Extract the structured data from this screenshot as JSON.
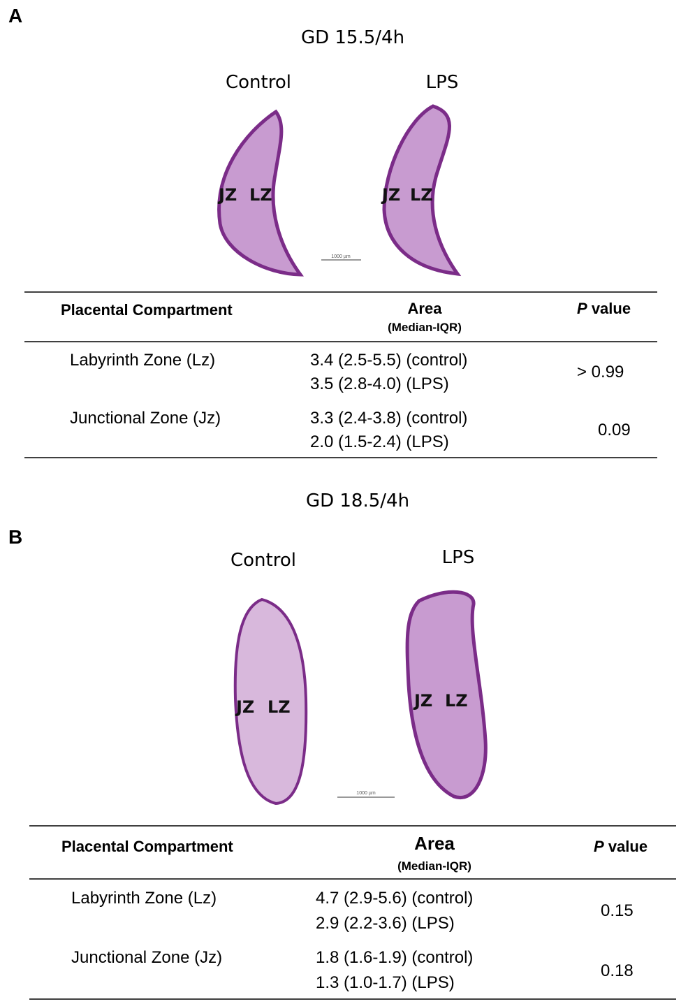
{
  "panels": [
    {
      "label": "A",
      "title": "GD 15.5/4h",
      "images": [
        {
          "label": "Control",
          "zones": [
            "JZ",
            "LZ"
          ]
        },
        {
          "label": "LPS",
          "zones": [
            "JZ",
            "LZ"
          ]
        }
      ],
      "scale_bar": "1000 µm",
      "table": {
        "headers": {
          "compartment": "Placental Compartment",
          "area": "Area",
          "area_sub": "(Median-IQR)",
          "p_italic": "P",
          "p_rest": "value"
        },
        "rows": [
          {
            "name": "Labyrinth Zone (Lz)",
            "area": [
              "3.4 (2.5-5.5) (control)",
              "3.5 (2.8-4.0) (LPS)"
            ],
            "p": "> 0.99"
          },
          {
            "name": "Junctional Zone (Jz)",
            "area": [
              "3.3 (2.4-3.8) (control)",
              "2.0 (1.5-2.4) (LPS)"
            ],
            "p": "0.09"
          }
        ]
      }
    },
    {
      "label": "B",
      "title": "GD 18.5/4h",
      "images": [
        {
          "label": "Control",
          "zones": [
            "JZ",
            "LZ"
          ]
        },
        {
          "label": "LPS",
          "zones": [
            "JZ",
            "LZ"
          ]
        }
      ],
      "scale_bar": "1000 µm",
      "table": {
        "headers": {
          "compartment": "Placental Compartment",
          "area": "Area",
          "area_sub": "(Median-IQR)",
          "p_italic": "P",
          "p_rest": "value"
        },
        "rows": [
          {
            "name": "Labyrinth Zone (Lz)",
            "area": [
              "4.7 (2.9-5.6) (control)",
              "2.9 (2.2-3.6) (LPS)"
            ],
            "p": "0.15"
          },
          {
            "name": "Junctional Zone (Jz)",
            "area": [
              "1.8 (1.6-1.9) (control)",
              "1.3 (1.0-1.7) (LPS)"
            ],
            "p": "0.18"
          }
        ]
      }
    }
  ]
}
